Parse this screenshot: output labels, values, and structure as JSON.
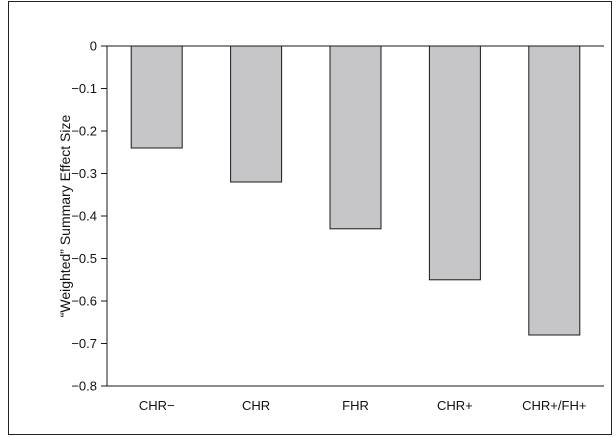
{
  "chart_data": {
    "type": "bar",
    "title": "",
    "xlabel": "",
    "ylabel": "“Weighted” Summary Effect Size",
    "categories": [
      "CHR−",
      "CHR",
      "FHR",
      "CHR+",
      "CHR+/FH+"
    ],
    "values": [
      -0.24,
      -0.32,
      -0.43,
      -0.55,
      -0.68
    ],
    "ylim": [
      -0.8,
      0
    ],
    "yticks": [
      0,
      -0.1,
      -0.2,
      -0.3,
      -0.4,
      -0.5,
      -0.6,
      -0.7,
      -0.8
    ],
    "ytick_labels": [
      "0",
      "−0.1",
      "−0.2",
      "−0.3",
      "−0.4",
      "−0.5",
      "−0.6",
      "−0.7",
      "−0.8"
    ],
    "grid": false,
    "legend": "none",
    "colors": {
      "bar_fill": "#c6c6c8",
      "bar_stroke": "#1a1a1a",
      "axis": "#1a1a1a"
    }
  }
}
